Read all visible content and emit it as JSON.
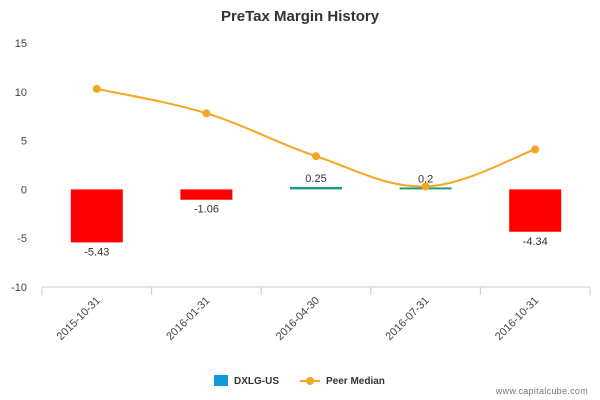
{
  "chart_data": {
    "type": "bar",
    "title": "PreTax Margin History",
    "categories": [
      "2015-10-31",
      "2016-01-31",
      "2016-04-30",
      "2016-07-31",
      "2016-10-31"
    ],
    "series": [
      {
        "name": "DXLG-US",
        "type": "bar",
        "values": [
          -5.43,
          -1.06,
          0.25,
          0.2,
          -4.34
        ],
        "labels": [
          "-5.43",
          "-1.06",
          "0.25",
          "0.2",
          "-4.34"
        ]
      },
      {
        "name": "Peer Median",
        "type": "line",
        "values": [
          10.3,
          7.8,
          3.4,
          0.3,
          4.1
        ]
      }
    ],
    "yticks": [
      "15",
      "10",
      "5",
      "0",
      "-5",
      "-10"
    ],
    "ylim": [
      -10,
      15
    ],
    "colors": {
      "bar_positive": "#1a9c7c",
      "bar_negative": "#ff0000",
      "legend_bar": "#0e9bd8",
      "line": "#f5a623"
    },
    "legend_position": "bottom-center",
    "grid": false
  },
  "watermark": "www.capitalcube.com"
}
